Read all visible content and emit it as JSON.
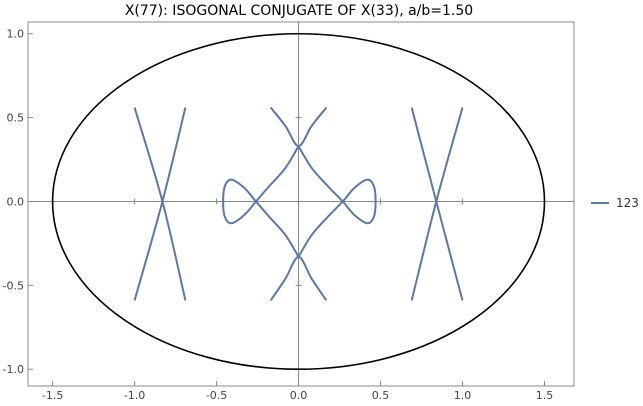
{
  "chart_data": {
    "type": "line",
    "title": "X(77): ISOGONAL CONJUGATE OF X(33), a/b=1.50",
    "xlabel": "",
    "ylabel": "",
    "xlim": [
      -1.65,
      1.68
    ],
    "ylim": [
      -1.1,
      1.07
    ],
    "x_ticks": [
      -1.5,
      -1.0,
      -0.5,
      0.0,
      0.5,
      1.0,
      1.5
    ],
    "x_tick_labels": [
      "-1.5",
      "-1.0",
      "-0.5",
      "0.0",
      "0.5",
      "1.0",
      "1.5"
    ],
    "y_ticks": [
      -1.0,
      -0.5,
      0.0,
      0.5,
      1.0
    ],
    "y_tick_labels": [
      "-1.0",
      "-0.5",
      "0.0",
      "0.5",
      "1.0"
    ],
    "grid": false,
    "axes_through_origin": true,
    "legend": {
      "position": "right",
      "entries": [
        "123"
      ]
    },
    "ellipse": {
      "a": 1.5,
      "b": 1.0,
      "color": "#000000"
    },
    "series": [
      {
        "name": "123",
        "color": "#5b78a8",
        "segments": [
          [
            [
              -1.0,
              0.56
            ],
            [
              -0.83,
              0.0
            ],
            [
              -0.69,
              -0.59
            ]
          ],
          [
            [
              -0.69,
              0.56
            ],
            [
              -0.83,
              0.0
            ],
            [
              -1.0,
              -0.59
            ]
          ],
          [
            [
              0.69,
              0.56
            ],
            [
              0.84,
              0.0
            ],
            [
              1.0,
              -0.59
            ]
          ],
          [
            [
              1.0,
              0.56
            ],
            [
              0.84,
              0.0
            ],
            [
              0.69,
              -0.59
            ]
          ],
          [
            [
              -0.17,
              0.56
            ],
            [
              -0.08,
              0.45
            ],
            [
              0.0,
              0.33
            ],
            [
              0.08,
              0.45
            ],
            [
              0.17,
              0.56
            ]
          ],
          [
            [
              -0.17,
              -0.59
            ],
            [
              -0.08,
              -0.46
            ],
            [
              0.0,
              -0.33
            ],
            [
              0.08,
              -0.46
            ],
            [
              0.17,
              -0.59
            ]
          ],
          [
            [
              0.0,
              0.33
            ],
            [
              -0.08,
              0.2
            ],
            [
              -0.18,
              0.09
            ],
            [
              -0.26,
              0.0
            ],
            [
              -0.33,
              -0.08
            ],
            [
              -0.41,
              -0.13
            ],
            [
              -0.45,
              -0.09
            ],
            [
              -0.46,
              0.0
            ],
            [
              -0.45,
              0.09
            ],
            [
              -0.41,
              0.13
            ],
            [
              -0.33,
              0.08
            ],
            [
              -0.26,
              0.0
            ],
            [
              -0.18,
              -0.09
            ],
            [
              -0.08,
              -0.2
            ],
            [
              0.0,
              -0.33
            ]
          ],
          [
            [
              0.0,
              0.33
            ],
            [
              0.08,
              0.2
            ],
            [
              0.18,
              0.09
            ],
            [
              0.27,
              0.0
            ],
            [
              0.34,
              -0.08
            ],
            [
              0.42,
              -0.13
            ],
            [
              0.46,
              -0.09
            ],
            [
              0.47,
              0.0
            ],
            [
              0.46,
              0.09
            ],
            [
              0.42,
              0.13
            ],
            [
              0.34,
              0.08
            ],
            [
              0.27,
              0.0
            ],
            [
              0.18,
              -0.09
            ],
            [
              0.08,
              -0.2
            ],
            [
              0.0,
              -0.33
            ]
          ]
        ]
      }
    ]
  }
}
